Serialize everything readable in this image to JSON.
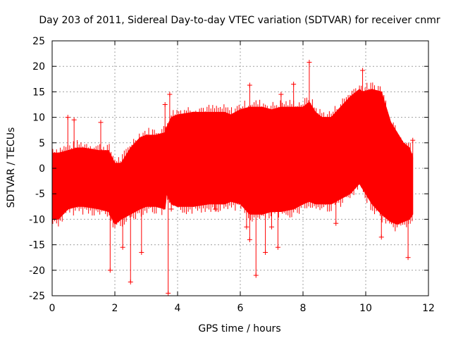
{
  "chart_data": {
    "type": "scatter",
    "title": "Day 203 of 2011, Sidereal Day-to-day VTEC variation (SDTVAR) for receiver cnmr",
    "xlabel": "GPS time / hours",
    "ylabel": "SDTVAR / TECUs",
    "xlim": [
      0,
      12
    ],
    "ylim": [
      -25,
      25
    ],
    "x_ticks": [
      0,
      2,
      4,
      6,
      8,
      10,
      12
    ],
    "y_ticks": [
      -25,
      -20,
      -15,
      -10,
      -5,
      0,
      5,
      10,
      15,
      20,
      25
    ],
    "grid": true,
    "marker": "+",
    "color": "#ff0000",
    "series": [
      {
        "name": "SDTVAR",
        "band_x": [
          0.0,
          0.2,
          0.5,
          0.8,
          1.0,
          1.5,
          1.8,
          2.0,
          2.2,
          2.5,
          2.8,
          3.0,
          3.3,
          3.6,
          3.65,
          3.8,
          4.0,
          4.5,
          5.0,
          5.5,
          5.7,
          6.0,
          6.3,
          6.7,
          7.0,
          7.3,
          7.7,
          8.0,
          8.2,
          8.4,
          8.6,
          8.9,
          9.2,
          9.5,
          9.8,
          9.9,
          10.2,
          10.5,
          10.8,
          11.0,
          11.2,
          11.4,
          11.5
        ],
        "band_upper": [
          3,
          3,
          3.5,
          4,
          4,
          3.5,
          3.5,
          1,
          1,
          4,
          6,
          6.5,
          6.5,
          7,
          8,
          10,
          10.5,
          11,
          11,
          11,
          10.5,
          11.5,
          12,
          12,
          11.5,
          12,
          12,
          12,
          13,
          11,
          10,
          10,
          12,
          14,
          15.5,
          15,
          15.5,
          15,
          9,
          7,
          5,
          4,
          2
        ],
        "band_lower": [
          -10,
          -10,
          -8,
          -7.5,
          -7.5,
          -8,
          -8.5,
          -11,
          -10,
          -9,
          -8,
          -7.5,
          -7.5,
          -8,
          -5,
          -7,
          -7.5,
          -7.5,
          -7,
          -7,
          -6.5,
          -7,
          -9,
          -9,
          -8.5,
          -8.5,
          -8,
          -7,
          -6.5,
          -7,
          -7,
          -7,
          -6,
          -5,
          -3,
          -4,
          -7,
          -9,
          -10.5,
          -11,
          -10.5,
          -10,
          -9
        ],
        "outliers": [
          {
            "x": 0.5,
            "y": 10
          },
          {
            "x": 0.7,
            "y": 9.5
          },
          {
            "x": 1.55,
            "y": 9
          },
          {
            "x": 1.85,
            "y": -20
          },
          {
            "x": 2.25,
            "y": -15.5
          },
          {
            "x": 2.5,
            "y": -22.3
          },
          {
            "x": 2.85,
            "y": -16.5
          },
          {
            "x": 3.6,
            "y": 12.5
          },
          {
            "x": 3.75,
            "y": 14.5
          },
          {
            "x": 3.7,
            "y": -24.5
          },
          {
            "x": 3.8,
            "y": -8
          },
          {
            "x": 5.2,
            "y": -8
          },
          {
            "x": 6.3,
            "y": 16.3
          },
          {
            "x": 6.2,
            "y": -11.5
          },
          {
            "x": 6.3,
            "y": -14
          },
          {
            "x": 6.5,
            "y": -21
          },
          {
            "x": 6.8,
            "y": -16.5
          },
          {
            "x": 7.0,
            "y": -11.5
          },
          {
            "x": 7.2,
            "y": -15.5
          },
          {
            "x": 7.3,
            "y": 14.5
          },
          {
            "x": 7.7,
            "y": 16.5
          },
          {
            "x": 8.2,
            "y": 20.8
          },
          {
            "x": 9.9,
            "y": 19.2
          },
          {
            "x": 9.05,
            "y": -10.8
          },
          {
            "x": 10.5,
            "y": -13.5
          },
          {
            "x": 11.35,
            "y": -17.5
          },
          {
            "x": 11.5,
            "y": 5.5
          }
        ]
      }
    ]
  }
}
